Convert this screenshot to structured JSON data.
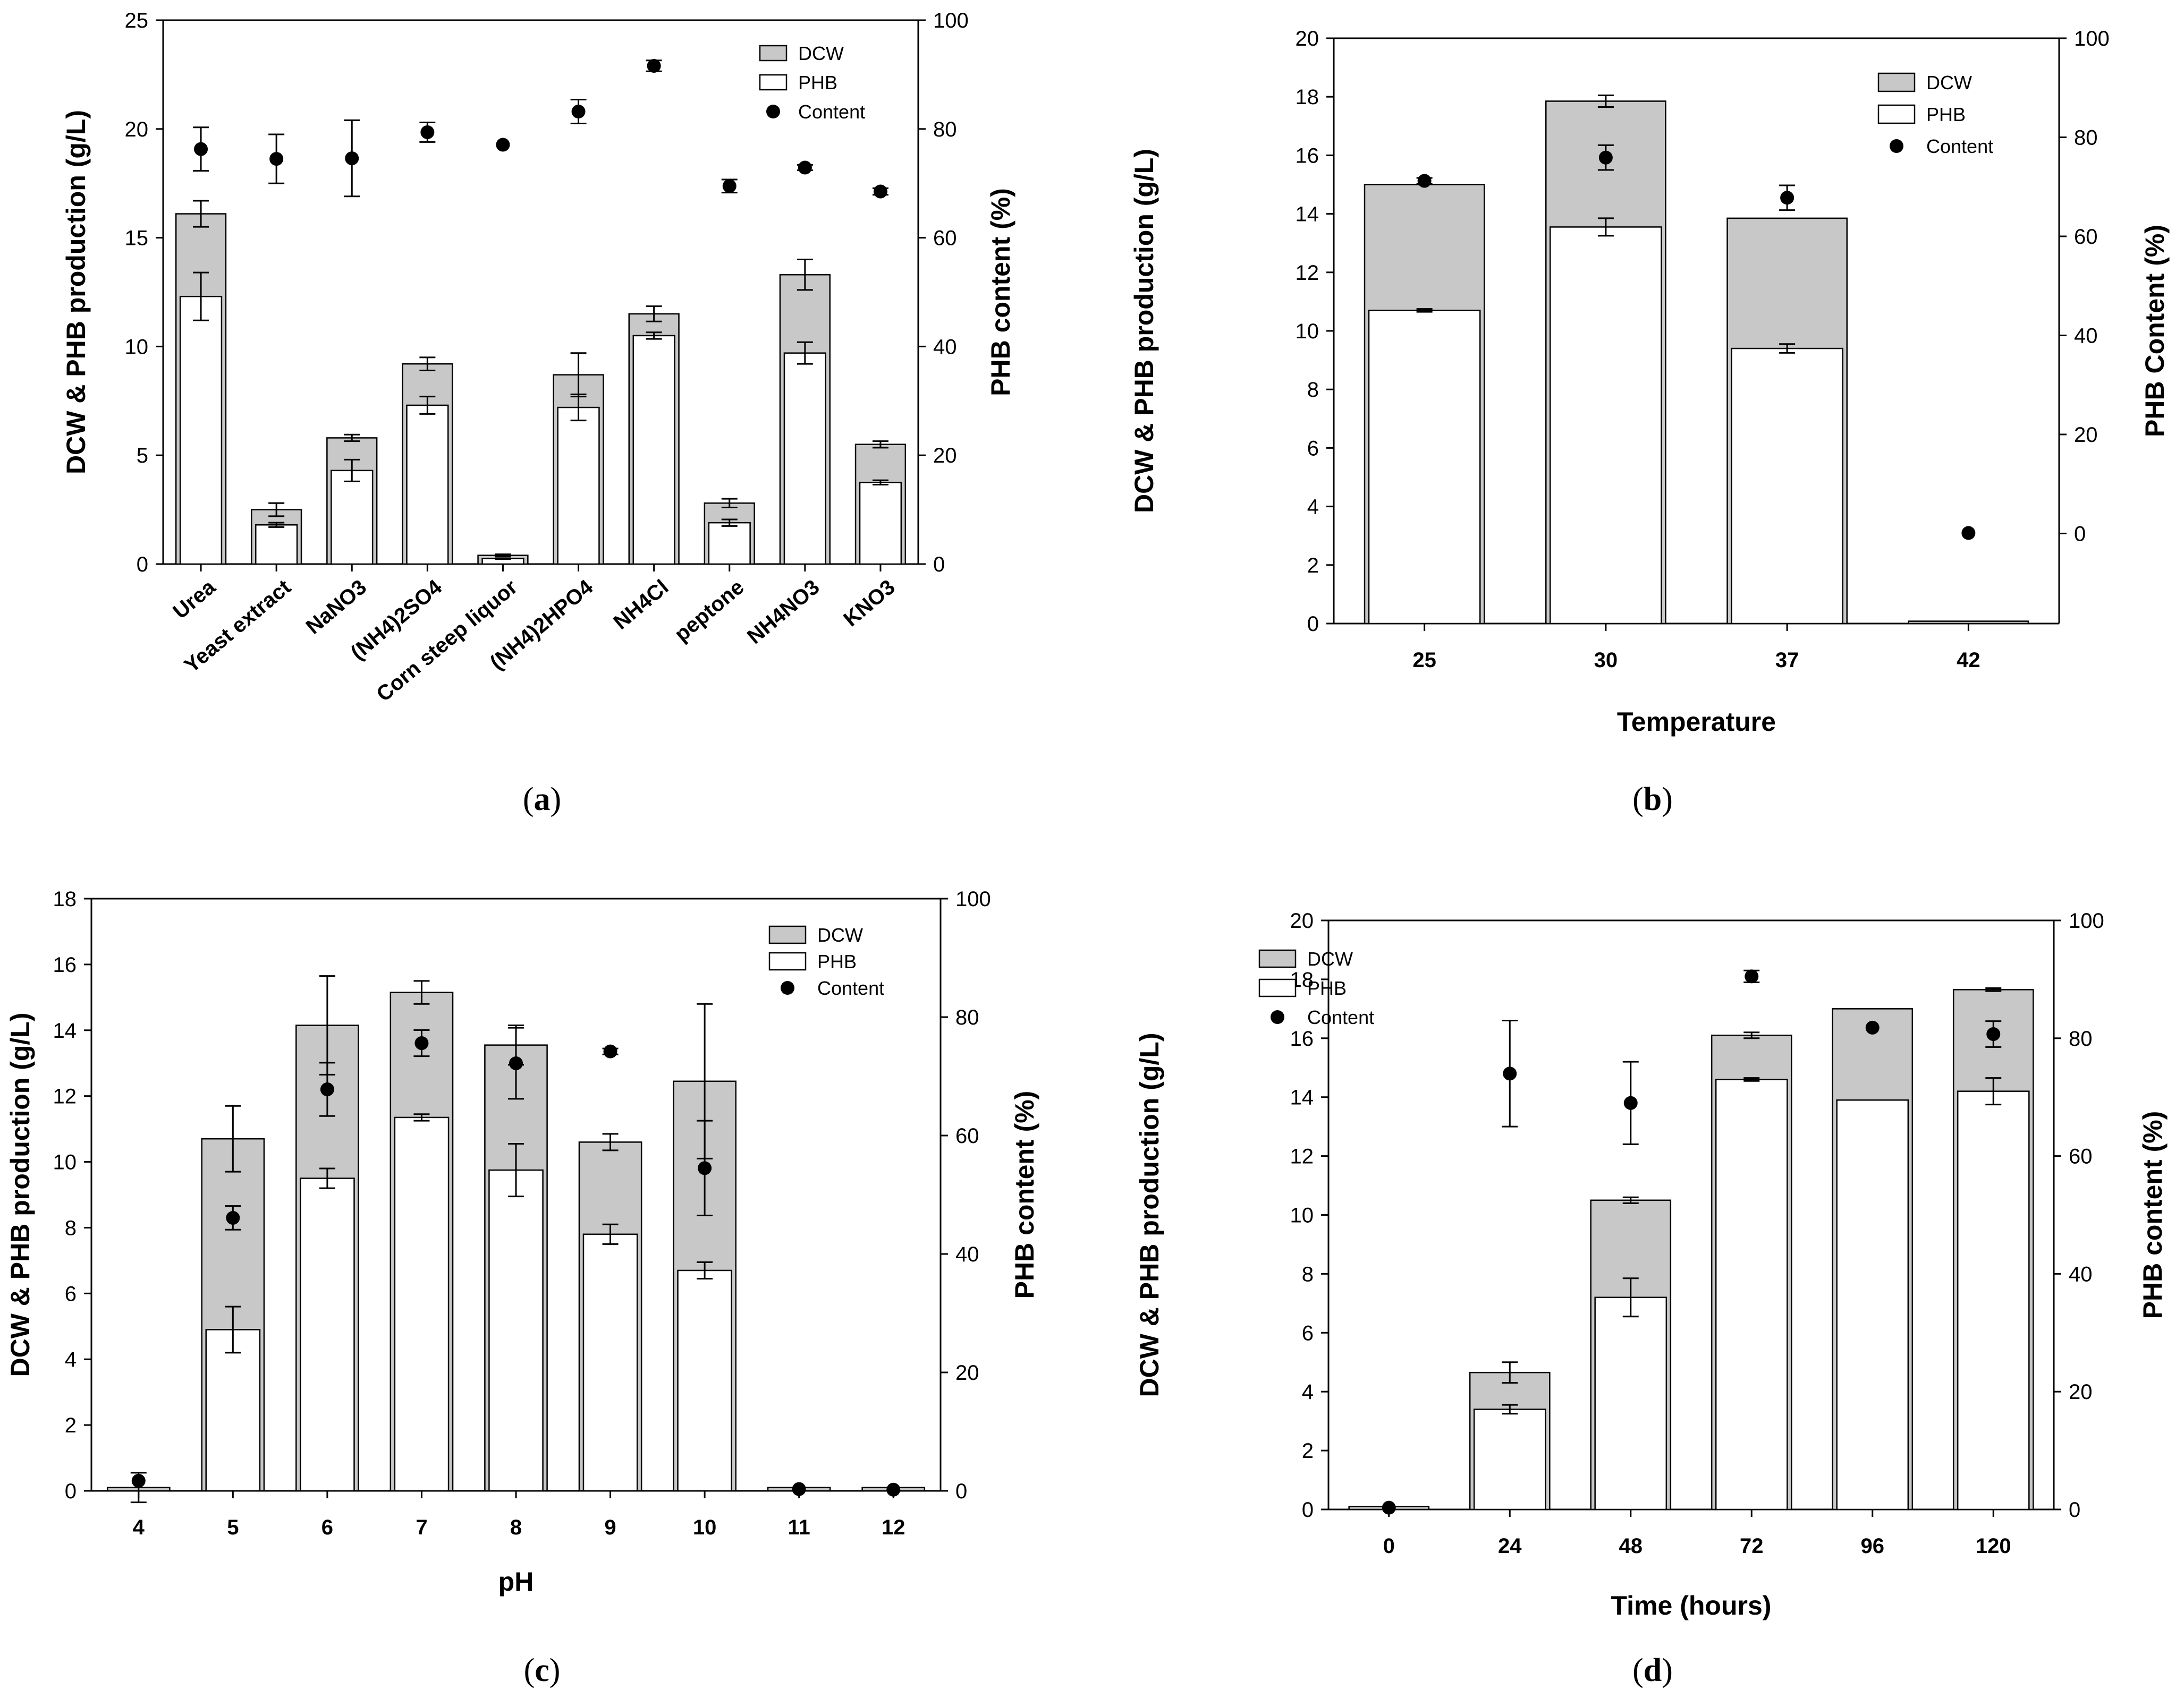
{
  "chart_data": [
    {
      "type": "bar",
      "panel_label": "a",
      "xlabel": "",
      "ylabel": "DCW & PHB production (g/L)",
      "y2label": "PHB content (%)",
      "ylim": [
        0,
        25
      ],
      "yticks": [
        0,
        5,
        10,
        15,
        20,
        25
      ],
      "y2lim": [
        0,
        100
      ],
      "y2ticks": [
        0,
        20,
        40,
        60,
        80,
        100
      ],
      "categories": [
        "Urea",
        "Yeast extract",
        "NaNO3",
        "(NH4)2SO4",
        "Corn steep liquor",
        "(NH4)2HPO4",
        "NH4Cl",
        "peptone",
        "NH4NO3",
        "KNO3"
      ],
      "legend": {
        "position": "top-right",
        "entries": [
          "DCW",
          "PHB",
          "Content"
        ]
      },
      "series": [
        {
          "name": "DCW",
          "values": [
            16.1,
            2.5,
            5.8,
            9.2,
            0.4,
            8.7,
            11.5,
            2.8,
            13.3,
            5.5
          ],
          "errors": [
            0.6,
            0.3,
            0.15,
            0.3,
            0.05,
            1.0,
            0.35,
            0.2,
            0.7,
            0.15
          ],
          "color": "#c8c8c8"
        },
        {
          "name": "PHB",
          "values": [
            12.3,
            1.8,
            4.3,
            7.3,
            0.25,
            7.2,
            10.5,
            1.9,
            9.7,
            3.75
          ],
          "errors": [
            1.1,
            0.1,
            0.5,
            0.4,
            0.02,
            0.6,
            0.15,
            0.15,
            0.5,
            0.1
          ],
          "color": "#ffffff"
        },
        {
          "name": "Content",
          "values": [
            76.3,
            74.5,
            74.6,
            79.4,
            77.1,
            83.2,
            91.6,
            69.5,
            72.9,
            68.5
          ],
          "errors": [
            4.0,
            4.5,
            7.0,
            1.8,
            0.0,
            2.2,
            1.0,
            1.2,
            0.5,
            0.6
          ]
        }
      ]
    },
    {
      "type": "bar",
      "panel_label": "b",
      "xlabel": "Temperature",
      "ylabel": "DCW & PHB production (g/L)",
      "y2label": "PHB Content (%)",
      "ylim": [
        0,
        20
      ],
      "yticks": [
        0,
        2,
        4,
        6,
        8,
        10,
        12,
        14,
        16,
        18,
        20
      ],
      "y2lim": [
        -18.18,
        100
      ],
      "y2ticks": [
        0,
        20,
        40,
        60,
        80,
        100
      ],
      "categories": [
        "25",
        "30",
        "37",
        "42"
      ],
      "legend": {
        "position": "top-right",
        "entries": [
          "DCW",
          "PHB",
          "Content"
        ]
      },
      "series": [
        {
          "name": "DCW",
          "values": [
            15.0,
            17.85,
            13.85,
            0.08
          ],
          "errors": [
            0.0,
            0.2,
            0.0,
            0.0
          ],
          "color": "#c8c8c8"
        },
        {
          "name": "PHB",
          "values": [
            10.7,
            13.55,
            9.4,
            0.0
          ],
          "errors": [
            0.05,
            0.3,
            0.15,
            0.0
          ],
          "color": "#ffffff"
        },
        {
          "name": "Content",
          "values": [
            71.2,
            75.9,
            67.8,
            0.1
          ],
          "errors": [
            0.6,
            2.5,
            2.5,
            0.0
          ]
        }
      ]
    },
    {
      "type": "bar",
      "panel_label": "c",
      "xlabel": "pH",
      "ylabel": "DCW & PHB production (g/L)",
      "y2label": "PHB content (%)",
      "ylim": [
        0,
        18
      ],
      "yticks": [
        0,
        2,
        4,
        6,
        8,
        10,
        12,
        14,
        16,
        18
      ],
      "y2lim": [
        0,
        100
      ],
      "y2ticks": [
        0,
        20,
        40,
        60,
        80,
        100
      ],
      "categories": [
        "4",
        "5",
        "6",
        "7",
        "8",
        "9",
        "10",
        "11",
        "12"
      ],
      "legend": {
        "position": "top-right",
        "entries": [
          "DCW",
          "PHB",
          "Content"
        ]
      },
      "series": [
        {
          "name": "DCW",
          "values": [
            0.1,
            10.7,
            14.15,
            15.15,
            13.55,
            10.6,
            12.45,
            0.1,
            0.1
          ],
          "errors": [
            0.45,
            1.0,
            1.5,
            0.35,
            0.6,
            0.25,
            2.35,
            0.0,
            0.0
          ],
          "color": "#c8c8c8"
        },
        {
          "name": "PHB",
          "values": [
            0.0,
            4.9,
            9.5,
            11.35,
            9.75,
            7.8,
            6.7,
            0.0,
            0.0
          ],
          "errors": [
            0.0,
            0.7,
            0.3,
            0.1,
            0.8,
            0.3,
            0.25,
            0.0,
            0.0
          ],
          "color": "#ffffff"
        },
        {
          "name": "Content",
          "values": [
            1.7,
            46.1,
            67.8,
            75.6,
            72.2,
            74.2,
            54.5,
            0.3,
            0.2
          ],
          "errors": [
            0.0,
            2.0,
            4.5,
            2.2,
            6.0,
            0.5,
            8.0,
            0.0,
            0.0
          ]
        }
      ]
    },
    {
      "type": "bar",
      "panel_label": "d",
      "xlabel": "Time (hours)",
      "ylabel": "DCW & PHB production (g/L)",
      "y2label": "PHB content (%)",
      "ylim": [
        0,
        20
      ],
      "yticks": [
        0,
        2,
        4,
        6,
        8,
        10,
        12,
        14,
        16,
        18,
        20
      ],
      "y2lim": [
        0,
        100
      ],
      "y2ticks": [
        0,
        20,
        40,
        60,
        80,
        100
      ],
      "categories": [
        "0",
        "24",
        "48",
        "72",
        "96",
        "120"
      ],
      "legend": {
        "position": "top-left",
        "entries": [
          "DCW",
          "PHB",
          "Content"
        ]
      },
      "series": [
        {
          "name": "DCW",
          "values": [
            0.1,
            4.65,
            10.5,
            16.1,
            17.0,
            17.65
          ],
          "errors": [
            0.0,
            0.35,
            0.1,
            0.1,
            0.0,
            0.05
          ],
          "color": "#c8c8c8"
        },
        {
          "name": "PHB",
          "values": [
            0.0,
            3.4,
            7.2,
            14.6,
            13.9,
            14.2
          ],
          "errors": [
            0.0,
            0.15,
            0.65,
            0.05,
            0.0,
            0.45
          ],
          "color": "#ffffff"
        },
        {
          "name": "Content",
          "values": [
            0.3,
            74.0,
            69.0,
            90.5,
            81.8,
            80.7
          ],
          "errors": [
            0.0,
            9.0,
            7.0,
            1.0,
            0.0,
            2.2
          ]
        }
      ]
    }
  ]
}
